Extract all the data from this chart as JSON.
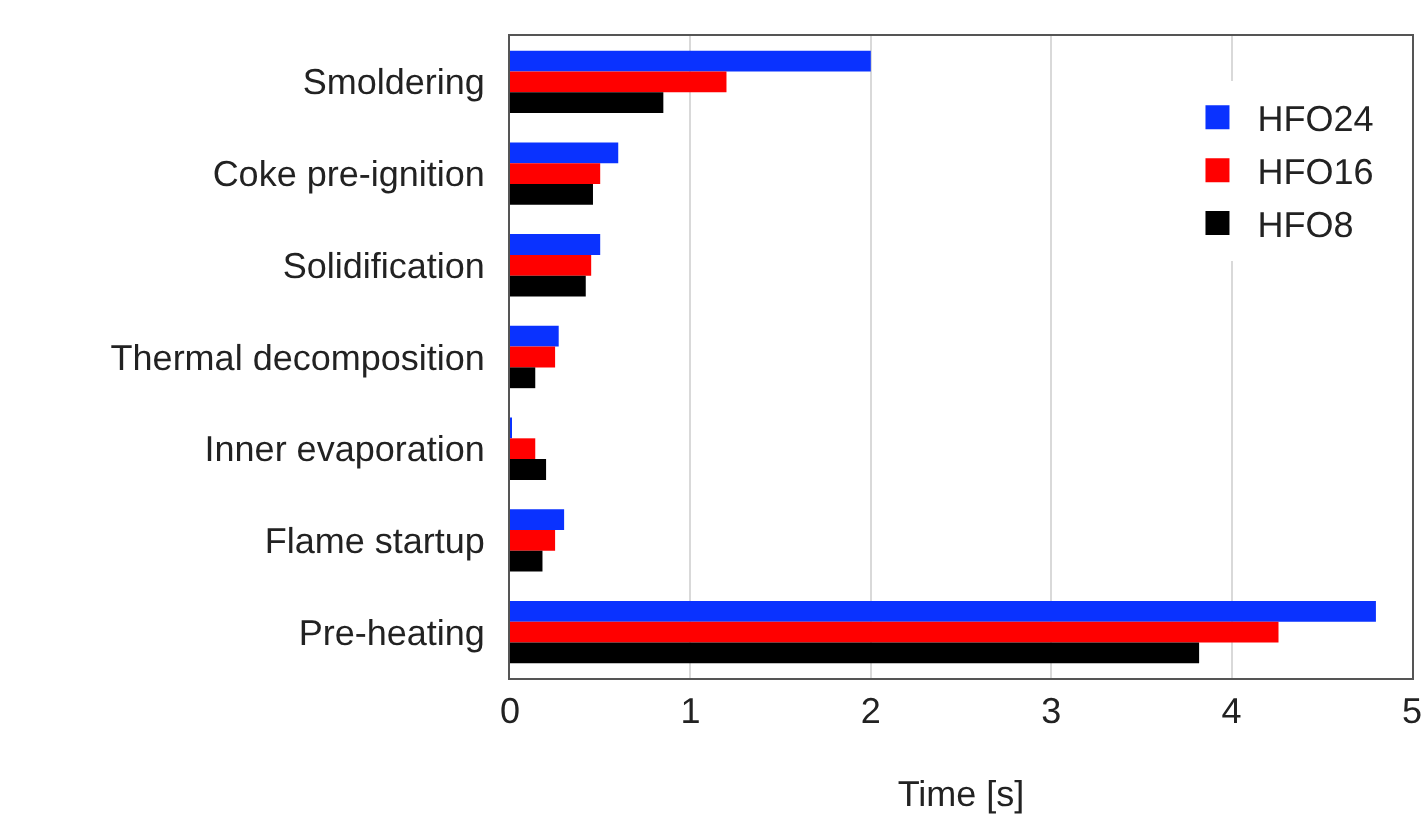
{
  "chart_data": {
    "type": "bar",
    "orientation": "horizontal",
    "xlabel": "Time [s]",
    "categories": [
      "Smoldering",
      "Coke pre-ignition",
      "Solidification",
      "Thermal decomposition",
      "Inner evaporation",
      "Flame startup",
      "Pre-heating"
    ],
    "series": [
      {
        "name": "HFO24",
        "color": "#0a32ff",
        "values": [
          2.0,
          0.6,
          0.5,
          0.27,
          0.01,
          0.3,
          4.8
        ]
      },
      {
        "name": "HFO16",
        "color": "#ff0000",
        "values": [
          1.2,
          0.5,
          0.45,
          0.25,
          0.14,
          0.25,
          4.26
        ]
      },
      {
        "name": "HFO8",
        "color": "#000000",
        "values": [
          0.85,
          0.46,
          0.42,
          0.14,
          0.2,
          0.18,
          3.82
        ]
      }
    ],
    "xlim": [
      0,
      5
    ],
    "xticks": [
      0,
      1,
      2,
      3,
      4,
      5
    ],
    "grid": "x",
    "legend": "right"
  }
}
